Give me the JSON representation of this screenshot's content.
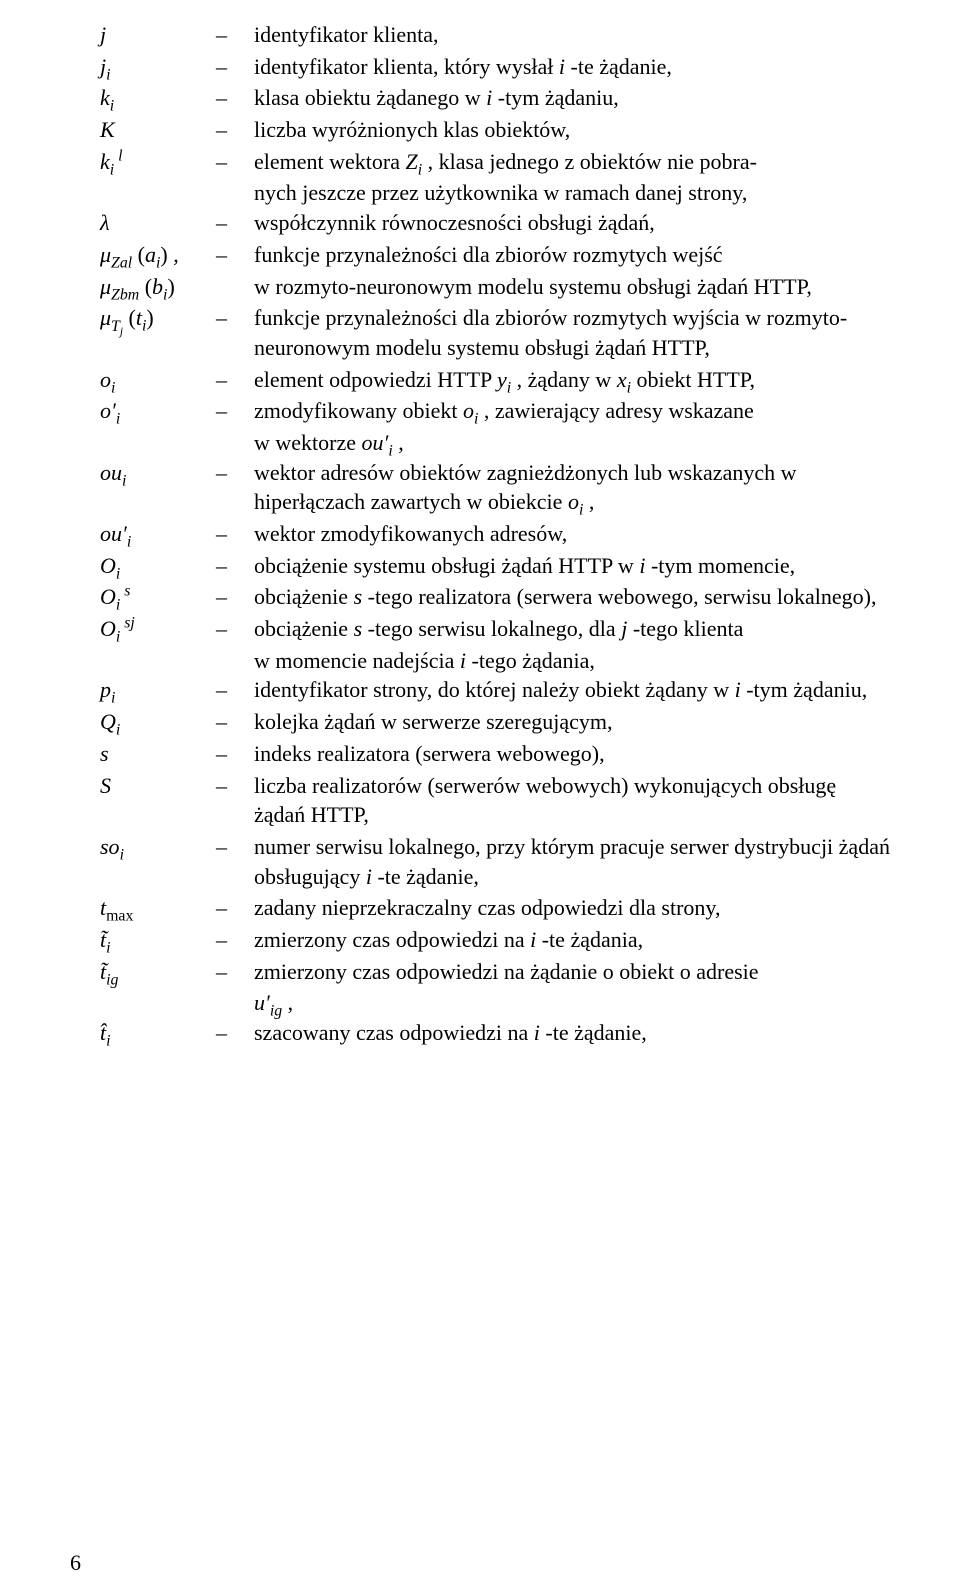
{
  "entries": [
    {
      "sym": "<span class='m'>j</span>",
      "def": "identyfikator klienta,"
    },
    {
      "sym": "<span class='m'>j<sub>i</sub></span>",
      "def": "identyfikator klienta, który wysłał <span class='m'>i</span> -te żądanie,"
    },
    {
      "sym": "<span class='m'>k<sub>i</sub></span>",
      "def": "klasa obiektu żądanego w <span class='m'>i</span> -tym żądaniu,"
    },
    {
      "sym": "<span class='m'>K</span>",
      "def": "liczba wyróżnionych klas obiektów,"
    },
    {
      "sym": "<span class='m'>k<sub>i</sub><sup>&nbsp;l</sup></span>",
      "def": "element wektora <span class='m'>Z<sub>i</sub></span> , klasa jednego z obiektów nie pobra-"
    },
    {
      "cont": true,
      "text": "nych jeszcze przez użytkownika w ramach danej strony,"
    },
    {
      "sym": "<span class='m'>λ</span>",
      "def": "współczynnik równoczesności obsługi żądań,"
    },
    {
      "sym": "<span class='m'>μ<sub>Zal</sub></span>&nbsp;<span class='up'>(</span><span class='m'>a<sub>i</sub></span><span class='up'>)</span>&nbsp;,",
      "def": "funkcje przynależności dla zbiorów rozmytych wejść"
    },
    {
      "sym": "<span class='m'>μ<sub>Zbm</sub></span>&nbsp;<span class='up'>(</span><span class='m'>b<sub>i</sub></span><span class='up'>)</span>",
      "nodash": true,
      "def": "w rozmyto-neuronowym modelu systemu obsługi żądań HTTP,"
    },
    {
      "sym": "<span class='m'>μ<sub>T<sub>j</sub></sub></span>&nbsp;<span class='up'>(</span><span class='m'>t<sub>i</sub></span><span class='up'>)</span>",
      "def": "funkcje przynależności dla zbiorów rozmytych wyjścia w rozmyto-neuronowym modelu systemu obsługi żądań HTTP,"
    },
    {
      "sym": "<span class='m'>o<sub>i</sub></span>",
      "def": "element odpowiedzi HTTP <span class='m'>y<sub>i</sub></span> , żądany w <span class='m'>x<sub>i</sub></span> obiekt HTTP,"
    },
    {
      "sym": "<span class='m'>o′<sub>i</sub></span>",
      "def": "zmodyfikowany obiekt <span class='m'>o<sub>i</sub></span> , zawierający adresy wskazane"
    },
    {
      "cont": true,
      "text": "w wektorze <span class='m'>ou′<sub>i</sub></span> ,"
    },
    {
      "sym": "<span class='m'>ou<sub>i</sub></span>",
      "def": "wektor adresów obiektów zagnieżdżonych lub wskazanych w hiperłączach zawartych w obiekcie <span class='m'>o<sub>i</sub></span> ,"
    },
    {
      "sym": "<span class='m'>ou′<sub>i</sub></span>",
      "def": "wektor zmodyfikowanych adresów,"
    },
    {
      "sym": "<span class='m'>O<sub>i</sub></span>",
      "def": "obciążenie systemu obsługi żądań HTTP w <span class='m'>i</span> -tym momencie,"
    },
    {
      "sym": "<span class='m'>O<sub>i</sub><sup>&nbsp;s</sup></span>",
      "def": "obciążenie <span class='m'>s</span> -tego realizatora (serwera webowego, serwisu lokalnego),"
    },
    {
      "sym": "<span class='m'>O<sub>i</sub><sup>&nbsp;sj</sup></span>",
      "def": "obciążenie <span class='m'>s</span> -tego serwisu lokalnego, dla <span class='m'>j</span> -tego klienta"
    },
    {
      "cont": true,
      "text": "w momencie nadejścia <span class='m'>i</span> -tego żądania,"
    },
    {
      "sym": "<span class='m'>p<sub>i</sub></span>",
      "def": "identyfikator strony, do której należy obiekt żądany w <span class='m'>i</span> -tym żądaniu,"
    },
    {
      "sym": "<span class='m'>Q<sub>i</sub></span>",
      "def": "kolejka żądań w serwerze szeregującym,"
    },
    {
      "sym": "<span class='m'>s</span>",
      "def": "indeks realizatora (serwera webowego),"
    },
    {
      "sym": "<span class='m'>S</span>",
      "def": "liczba realizatorów (serwerów webowych) wykonujących obsługę żądań HTTP,"
    },
    {
      "sym": "<span class='m'>so<sub>i</sub></span>",
      "def": "numer serwisu lokalnego, przy którym pracuje serwer dystrybucji żądań obsługujący <span class='m'>i</span> -te żądanie,"
    },
    {
      "sym": "<span class='m'>t</span><sub><span class='up'>max</span></sub>",
      "def": "zadany nieprzekraczalny czas odpowiedzi dla strony,"
    },
    {
      "sym": "<span class='m'>t̃<sub>i</sub></span>",
      "def": "zmierzony czas odpowiedzi na <span class='m'>i</span> -te żądania,"
    },
    {
      "sym": "<span class='m'>t̃<sub>ig</sub></span>",
      "def": "zmierzony czas odpowiedzi na żądanie o obiekt o adresie"
    },
    {
      "cont": true,
      "text": "<span class='m'>u′<sub>ig</sub></span> ,"
    },
    {
      "sym": "<span class='m'>t̂<sub>i</sub></span>",
      "def": "szacowany czas odpowiedzi na <span class='m'>i</span> -te żądanie,"
    }
  ],
  "dash": "–",
  "pageNumber": "6"
}
